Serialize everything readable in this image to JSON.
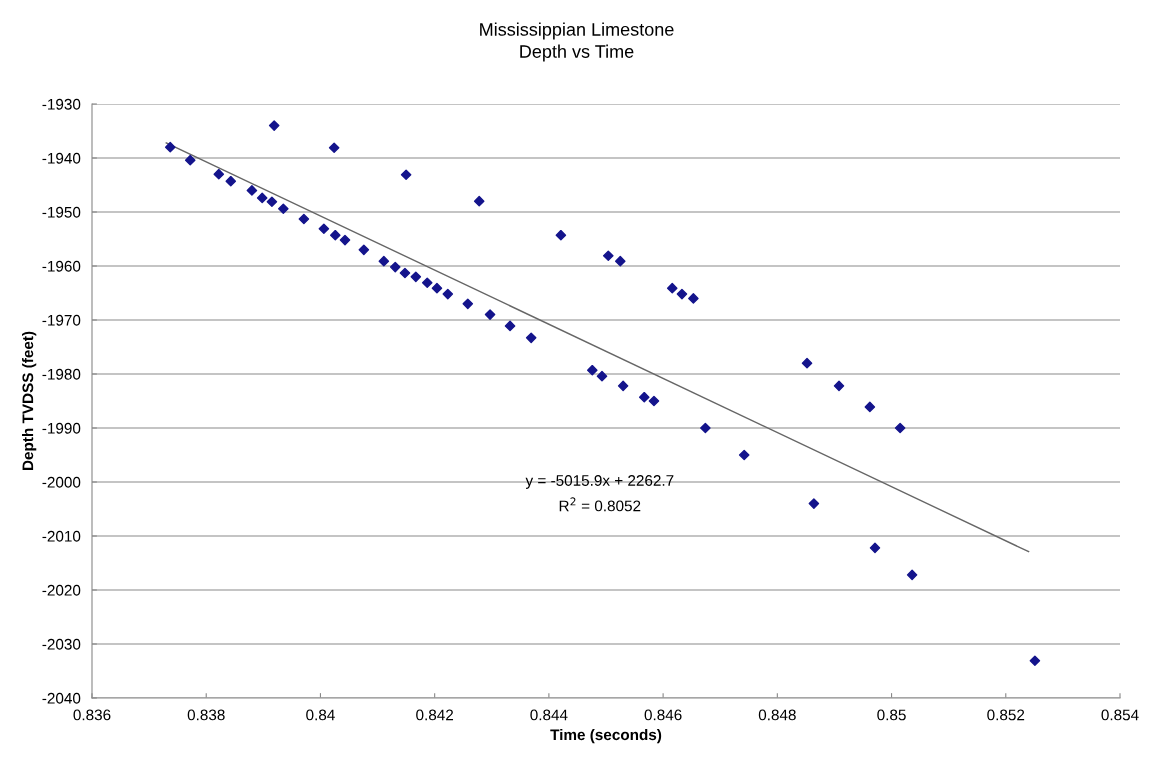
{
  "chart_data": {
    "type": "scatter",
    "title": "Mississippian Limestone\nDepth vs Time",
    "xlabel": "Time (seconds)",
    "ylabel": "Depth TVDSS (feet)",
    "xlim": [
      0.836,
      0.854
    ],
    "xticks": [
      0.836,
      0.838,
      0.84,
      0.842,
      0.844,
      0.846,
      0.848,
      0.85,
      0.852,
      0.854
    ],
    "ylim": [
      -2040,
      -1930
    ],
    "yticks": [
      -2040,
      -2030,
      -2020,
      -2010,
      -2000,
      -1990,
      -1980,
      -1970,
      -1960,
      -1950,
      -1940,
      -1930
    ],
    "grid": "y",
    "marker": "diamond",
    "legend": false,
    "series": [
      {
        "color": "#14148c",
        "x": [
          0.83737,
          0.83772,
          0.83822,
          0.83843,
          0.8388,
          0.83898,
          0.83915,
          0.83935,
          0.83919,
          0.83971,
          0.84006,
          0.84026,
          0.84043,
          0.84024,
          0.84076,
          0.84111,
          0.84131,
          0.84148,
          0.8415,
          0.84167,
          0.84187,
          0.84204,
          0.84223,
          0.84258,
          0.84278,
          0.84297,
          0.84332,
          0.84369,
          0.84421,
          0.84476,
          0.84493,
          0.84504,
          0.84525,
          0.8453,
          0.84567,
          0.84584,
          0.84616,
          0.84633,
          0.84653,
          0.84674,
          0.84742,
          0.84852,
          0.84908,
          0.84962,
          0.85015,
          0.84864,
          0.84971,
          0.85036,
          0.85251
        ],
        "values": [
          -1938,
          -1940.4,
          -1943,
          -1944.3,
          -1946,
          -1947.4,
          -1948.1,
          -1949.4,
          -1934,
          -1951.3,
          -1953.1,
          -1954.3,
          -1955.2,
          -1938.1,
          -1957,
          -1959.1,
          -1960.2,
          -1961.3,
          -1943.1,
          -1962,
          -1963.1,
          -1964.1,
          -1965.2,
          -1967,
          -1948,
          -1969,
          -1971.1,
          -1973.3,
          -1954.3,
          -1979.3,
          -1980.4,
          -1958.1,
          -1959.1,
          -1982.2,
          -1984.3,
          -1985,
          -1964.1,
          -1965.2,
          -1966,
          -1990,
          -1995,
          -1978,
          -1982.2,
          -1986.1,
          -1990,
          -2004,
          -2012.2,
          -2017.2,
          -2033.1
        ]
      },
      {
        "type": "line",
        "color": "#666666",
        "marker": "none",
        "x": [
          0.8373,
          0.8524
        ],
        "values": [
          -1937.2,
          -2012.9
        ]
      }
    ],
    "annotations": [
      "y = -5015.9x + 2262.7",
      "R$^{2}$ = 0.8052"
    ]
  }
}
